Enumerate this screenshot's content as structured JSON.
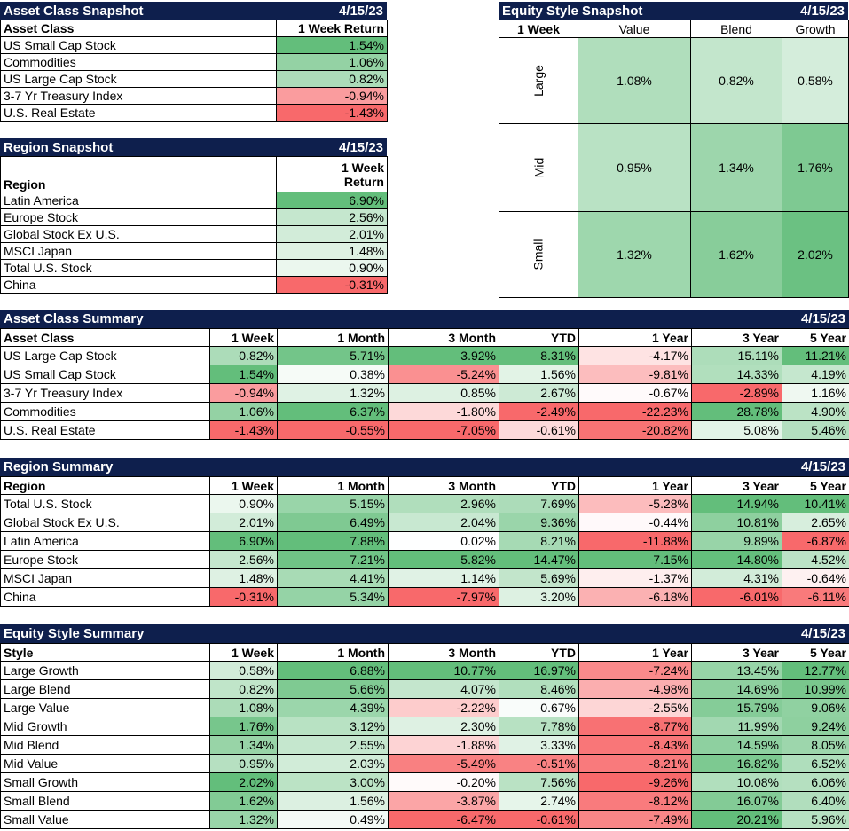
{
  "asset_snapshot": {
    "title": "Asset Class Snapshot",
    "date": "4/15/23",
    "col_label": "Asset Class",
    "col_value": "1 Week Return",
    "rows": [
      {
        "name": "US Small Cap Stock",
        "value": "1.54%"
      },
      {
        "name": "Commodities",
        "value": "1.06%"
      },
      {
        "name": "US Large Cap Stock",
        "value": "0.82%"
      },
      {
        "name": "3-7 Yr Treasury Index",
        "value": "-0.94%"
      },
      {
        "name": "U.S. Real Estate",
        "value": "-1.43%"
      }
    ]
  },
  "region_snapshot": {
    "title": "Region Snapshot",
    "date": "4/15/23",
    "col_label": "Region",
    "col_value_line1": "1 Week",
    "col_value_line2": "Return",
    "rows": [
      {
        "name": "Latin America",
        "value": "6.90%"
      },
      {
        "name": "Europe Stock",
        "value": "2.56%"
      },
      {
        "name": "Global Stock Ex U.S.",
        "value": "2.01%"
      },
      {
        "name": "MSCI Japan",
        "value": "1.48%"
      },
      {
        "name": "Total U.S. Stock",
        "value": "0.90%"
      },
      {
        "name": "China",
        "value": "-0.31%"
      }
    ]
  },
  "equity_snapshot": {
    "title": "Equity Style Snapshot",
    "date": "4/15/23",
    "corner": "1 Week",
    "cols": [
      "Value",
      "Blend",
      "Growth"
    ],
    "rows": [
      {
        "label": "Large",
        "values": [
          "1.08%",
          "0.82%",
          "0.58%"
        ]
      },
      {
        "label": "Mid",
        "values": [
          "0.95%",
          "1.34%",
          "1.76%"
        ]
      },
      {
        "label": "Small",
        "values": [
          "1.32%",
          "1.62%",
          "2.02%"
        ]
      }
    ]
  },
  "asset_summary": {
    "title": "Asset Class Summary",
    "date": "4/15/23",
    "columns": [
      "Asset Class",
      "1 Week",
      "1 Month",
      "3 Month",
      "YTD",
      "1 Year",
      "3 Year",
      "5 Year"
    ],
    "rows": [
      [
        "US Large Cap Stock",
        "0.82%",
        "5.71%",
        "3.92%",
        "8.31%",
        "-4.17%",
        "15.11%",
        "11.21%"
      ],
      [
        "US Small Cap Stock",
        "1.54%",
        "0.38%",
        "-5.24%",
        "1.56%",
        "-9.81%",
        "14.33%",
        "4.19%"
      ],
      [
        "3-7 Yr Treasury Index",
        "-0.94%",
        "1.32%",
        "0.85%",
        "2.67%",
        "-0.67%",
        "-2.89%",
        "1.16%"
      ],
      [
        "Commodities",
        "1.06%",
        "6.37%",
        "-1.80%",
        "-2.49%",
        "-22.23%",
        "28.78%",
        "4.90%"
      ],
      [
        "U.S. Real Estate",
        "-1.43%",
        "-0.55%",
        "-7.05%",
        "-0.61%",
        "-20.82%",
        "5.08%",
        "5.46%"
      ]
    ]
  },
  "region_summary": {
    "title": "Region Summary",
    "date": "4/15/23",
    "columns": [
      "Region",
      "1 Week",
      "1 Month",
      "3 Month",
      "YTD",
      "1 Year",
      "3 Year",
      "5 Year"
    ],
    "rows": [
      [
        "Total U.S. Stock",
        "0.90%",
        "5.15%",
        "2.96%",
        "7.69%",
        "-5.28%",
        "14.94%",
        "10.41%"
      ],
      [
        "Global Stock Ex U.S.",
        "2.01%",
        "6.49%",
        "2.04%",
        "9.36%",
        "-0.44%",
        "10.81%",
        "2.65%"
      ],
      [
        "Latin America",
        "6.90%",
        "7.88%",
        "0.02%",
        "8.21%",
        "-11.88%",
        "9.89%",
        "-6.87%"
      ],
      [
        "Europe Stock",
        "2.56%",
        "7.21%",
        "5.82%",
        "14.47%",
        "7.15%",
        "14.80%",
        "4.52%"
      ],
      [
        "MSCI Japan",
        "1.48%",
        "4.41%",
        "1.14%",
        "5.69%",
        "-1.37%",
        "4.31%",
        "-0.64%"
      ],
      [
        "China",
        "-0.31%",
        "5.34%",
        "-7.97%",
        "3.20%",
        "-6.18%",
        "-6.01%",
        "-6.11%"
      ]
    ]
  },
  "equity_summary": {
    "title": "Equity Style Summary",
    "date": "4/15/23",
    "columns": [
      "Style",
      "1 Week",
      "1 Month",
      "3 Month",
      "YTD",
      "1 Year",
      "3 Year",
      "5 Year"
    ],
    "rows": [
      [
        "Large Growth",
        "0.58%",
        "6.88%",
        "10.77%",
        "16.97%",
        "-7.24%",
        "13.45%",
        "12.77%"
      ],
      [
        "Large Blend",
        "0.82%",
        "5.66%",
        "4.07%",
        "8.46%",
        "-4.98%",
        "14.69%",
        "10.99%"
      ],
      [
        "Large Value",
        "1.08%",
        "4.39%",
        "-2.22%",
        "0.67%",
        "-2.55%",
        "15.79%",
        "9.06%"
      ],
      [
        "Mid Growth",
        "1.76%",
        "3.12%",
        "2.30%",
        "7.78%",
        "-8.77%",
        "11.99%",
        "9.24%"
      ],
      [
        "Mid Blend",
        "1.34%",
        "2.55%",
        "-1.88%",
        "3.33%",
        "-8.43%",
        "14.59%",
        "8.05%"
      ],
      [
        "Mid Value",
        "0.95%",
        "2.03%",
        "-5.49%",
        "-0.51%",
        "-8.21%",
        "16.82%",
        "6.52%"
      ],
      [
        "Small Growth",
        "2.02%",
        "3.00%",
        "-0.20%",
        "7.56%",
        "-9.26%",
        "10.08%",
        "6.06%"
      ],
      [
        "Small Blend",
        "1.62%",
        "1.56%",
        "-3.87%",
        "2.74%",
        "-8.12%",
        "16.07%",
        "6.40%"
      ],
      [
        "Small Value",
        "1.32%",
        "0.49%",
        "-6.47%",
        "-0.61%",
        "-7.49%",
        "20.21%",
        "5.96%"
      ]
    ]
  },
  "colors": {
    "header_bg": "#0e1f4d",
    "neg_strong": "#f8696b",
    "pos_strong": "#63be7b",
    "neutral": "#ffffff"
  }
}
